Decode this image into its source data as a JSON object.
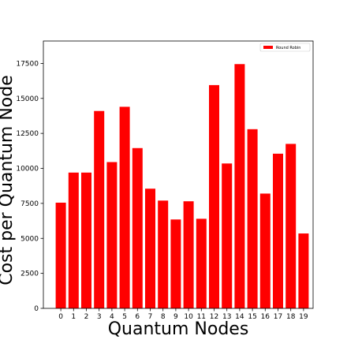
{
  "chart_data": {
    "type": "bar",
    "xlabel": "Quantum Nodes",
    "ylabel": "Cost per Quantum Node",
    "categories": [
      "0",
      "1",
      "2",
      "3",
      "4",
      "5",
      "6",
      "7",
      "8",
      "9",
      "10",
      "11",
      "12",
      "13",
      "14",
      "15",
      "16",
      "17",
      "18",
      "19"
    ],
    "series": [
      {
        "name": "Round Robin",
        "color": "#ff0000",
        "values": [
          7550,
          9700,
          9700,
          14100,
          10450,
          14400,
          11450,
          8550,
          7700,
          6350,
          7650,
          6400,
          15950,
          10350,
          17450,
          12800,
          8200,
          11050,
          11750,
          5350
        ]
      }
    ],
    "yticks": [
      0,
      2500,
      5000,
      7500,
      10000,
      12500,
      15000,
      17500
    ],
    "ylim": [
      0,
      19100
    ],
    "grid": false,
    "legend_position": "top-right"
  }
}
